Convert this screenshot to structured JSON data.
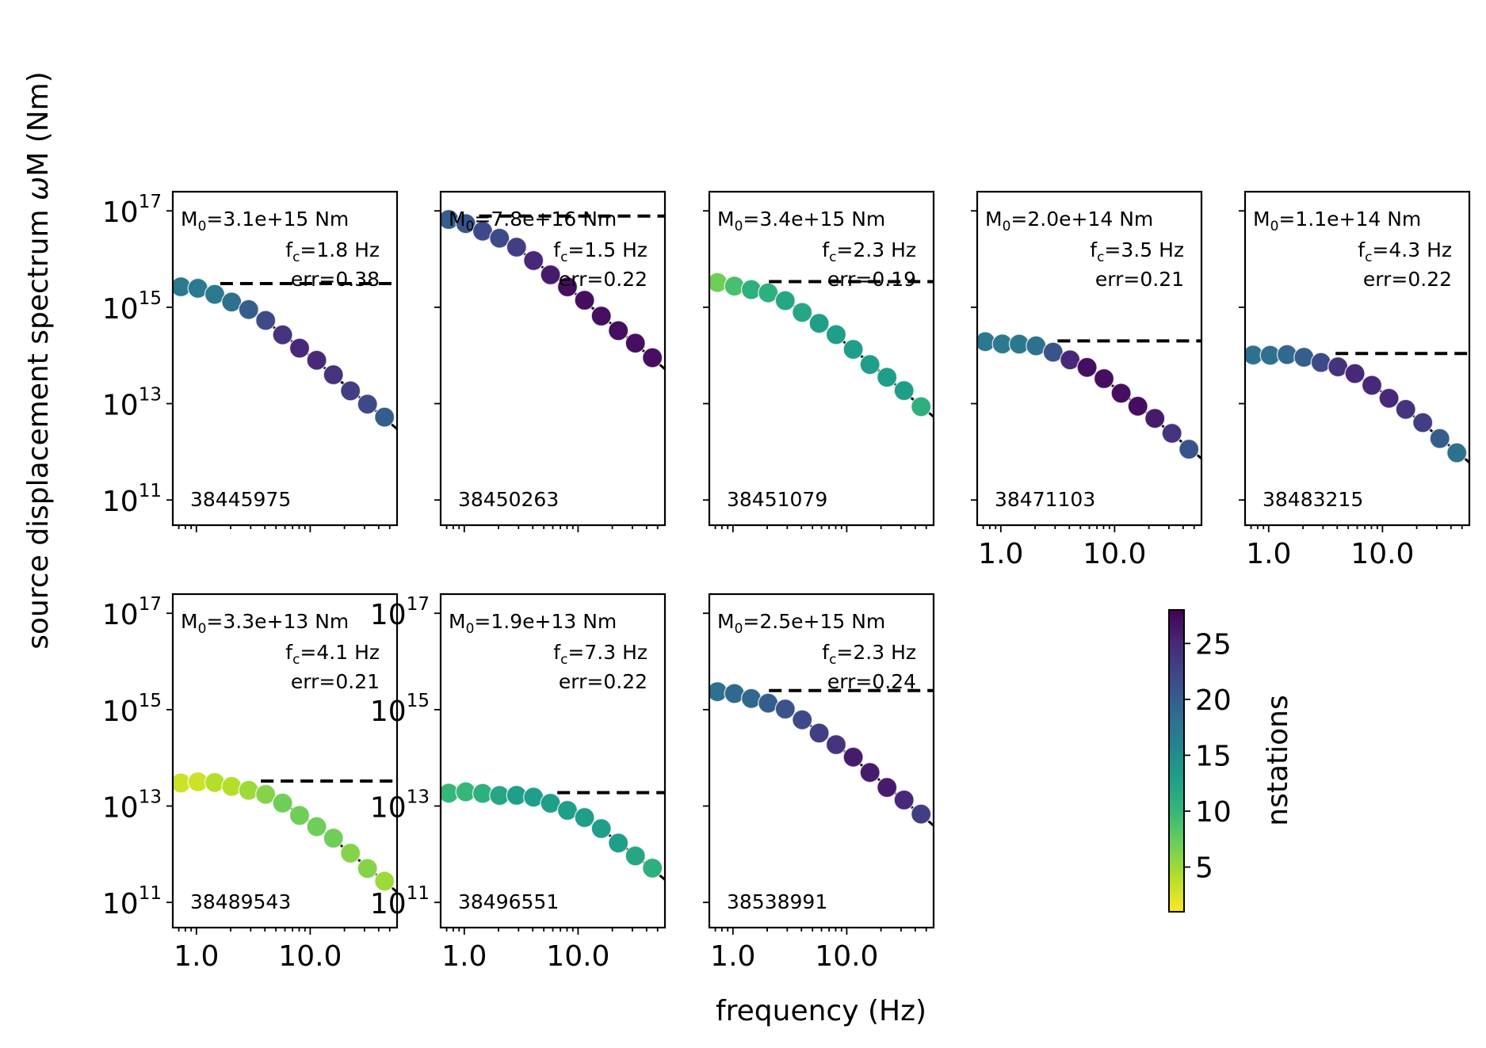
{
  "chart_data": {
    "type": "scatter",
    "title": "",
    "xlabel": "frequency (Hz)",
    "ylabel_prefix": "source displacement spectrum ",
    "ylabel_omega": "ω",
    "ylabel_suffix": "M (Nm)",
    "xscale": "log",
    "yscale": "log",
    "xlim": [
      0.62,
      58
    ],
    "ylim": [
      30000000000.0,
      2.5e+17
    ],
    "x_ticks": [
      {
        "value": 1.0,
        "label": "1.0"
      },
      {
        "value": 10.0,
        "label": "10.0"
      }
    ],
    "y_ticks": [
      {
        "value": 100000000000.0,
        "base": "10",
        "exp": "11"
      },
      {
        "value": 10000000000000.0,
        "base": "10",
        "exp": "13"
      },
      {
        "value": 1000000000000000.0,
        "base": "10",
        "exp": "15"
      },
      {
        "value": 1e+17,
        "base": "10",
        "exp": "17"
      }
    ],
    "frequencies": [
      0.73,
      1.03,
      1.45,
      2.04,
      2.88,
      4.06,
      5.72,
      8.07,
      11.4,
      16.0,
      22.6,
      31.9,
      45.0
    ],
    "colorbar": {
      "label": "nstations",
      "range": [
        1,
        28
      ],
      "ticks": [
        5,
        10,
        15,
        20,
        25
      ],
      "colormap": [
        "#fde725",
        "#b5de2b",
        "#6ece58",
        "#35b779",
        "#1f9e89",
        "#26828e",
        "#31688e",
        "#3e4989",
        "#482878",
        "#440154"
      ]
    },
    "panels": [
      {
        "event_id": "38445975",
        "m0_label": "=3.1e+15 Nm",
        "fc_label": "=1.8 Hz",
        "err_label": "err=0.38",
        "m0": 3100000000000000.0,
        "fc": 1.8,
        "n_start": 0,
        "n_end": 13,
        "show_yticklabels": true,
        "show_xticklabels": false,
        "nstations": [
          17,
          17,
          17,
          18,
          20,
          22,
          24,
          25,
          25,
          24,
          23,
          22,
          20
        ]
      },
      {
        "event_id": "38450263",
        "m0_label": "=7.8e+16 Nm",
        "fc_label": "=1.5 Hz",
        "err_label": "err=0.22",
        "m0": 7.8e+16,
        "fc": 1.5,
        "n_start": 0,
        "n_end": 13,
        "show_yticklabels": false,
        "show_xticklabels": false,
        "nstations": [
          20,
          21,
          22,
          22,
          23,
          25,
          26,
          27,
          27,
          27,
          27,
          27,
          27
        ]
      },
      {
        "event_id": "38451079",
        "m0_label": "=3.4e+15 Nm",
        "fc_label": "=2.3 Hz",
        "err_label": "err=0.19",
        "m0": 3400000000000000.0,
        "fc": 2.3,
        "n_start": 0,
        "n_end": 13,
        "show_yticklabels": false,
        "show_xticklabels": false,
        "nstations": [
          7,
          9,
          11,
          11,
          12,
          12,
          13,
          13,
          13,
          13,
          13,
          13,
          11
        ]
      },
      {
        "event_id": "38471103",
        "m0_label": "=2.0e+14 Nm",
        "fc_label": "=3.5 Hz",
        "err_label": "err=0.21",
        "m0": 200000000000000.0,
        "fc": 3.5,
        "n_start": 0,
        "n_end": 13,
        "show_yticklabels": false,
        "show_xticklabels": true,
        "nstations": [
          17,
          17,
          17,
          18,
          21,
          25,
          27,
          27,
          27,
          27,
          26,
          24,
          21
        ]
      },
      {
        "event_id": "38483215",
        "m0_label": "=1.1e+14 Nm",
        "fc_label": "=4.3 Hz",
        "err_label": "err=0.22",
        "m0": 110000000000000.0,
        "fc": 4.3,
        "n_start": 0,
        "n_end": 13,
        "show_yticklabels": false,
        "show_xticklabels": true,
        "nstations": [
          18,
          18,
          19,
          20,
          22,
          24,
          25,
          25,
          25,
          24,
          23,
          20,
          18
        ]
      },
      {
        "event_id": "38489543",
        "m0_label": "=3.3e+13 Nm",
        "fc_label": "=4.1 Hz",
        "err_label": "err=0.21",
        "m0": 33000000000000.0,
        "fc": 4.1,
        "n_start": 0,
        "n_end": 13,
        "show_yticklabels": true,
        "show_xticklabels": true,
        "nstations": [
          3,
          3,
          4,
          4,
          5,
          6,
          7,
          7,
          7,
          7,
          6,
          6,
          5
        ]
      },
      {
        "event_id": "38496551",
        "m0_label": "=1.9e+13 Nm",
        "fc_label": "=7.3 Hz",
        "err_label": "err=0.22",
        "m0": 19000000000000.0,
        "fc": 7.3,
        "n_start": 0,
        "n_end": 13,
        "show_yticklabels": true,
        "show_xticklabels": true,
        "nstations": [
          10,
          10,
          11,
          12,
          13,
          13,
          13,
          13,
          13,
          13,
          13,
          12,
          11
        ]
      },
      {
        "event_id": "38538991",
        "m0_label": "=2.5e+15 Nm",
        "fc_label": "=2.3 Hz",
        "err_label": "err=0.24",
        "m0": 2500000000000000.0,
        "fc": 2.3,
        "n_start": 0,
        "n_end": 13,
        "show_yticklabels": false,
        "show_xticklabels": true,
        "nstations": [
          18,
          19,
          19,
          20,
          21,
          22,
          23,
          24,
          26,
          26,
          26,
          25,
          23
        ]
      }
    ]
  }
}
